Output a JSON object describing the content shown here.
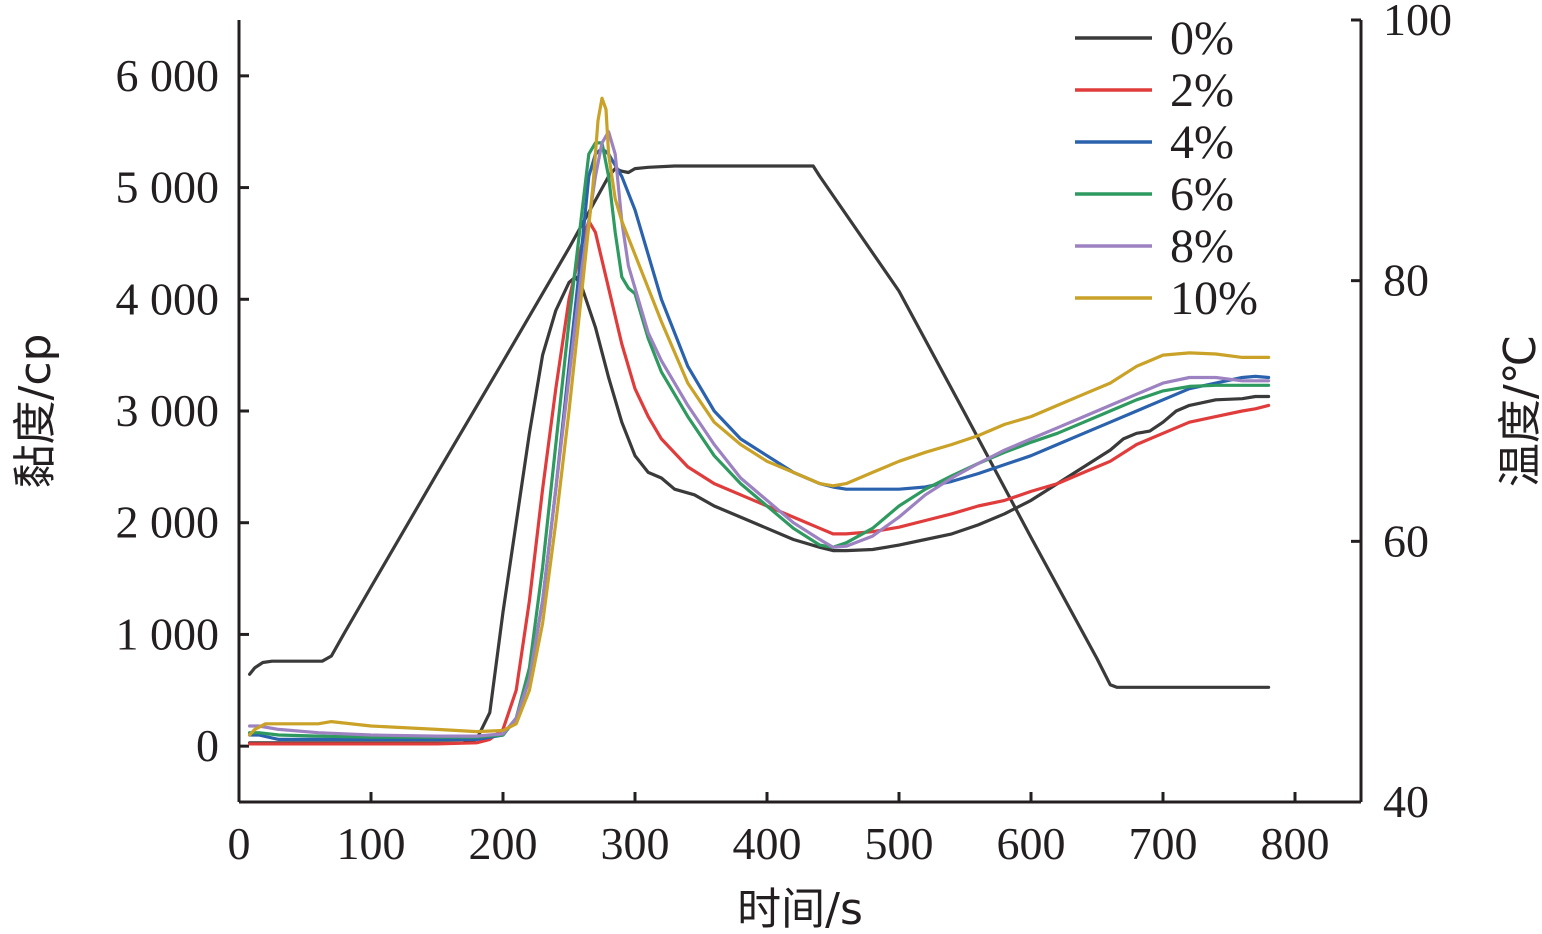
{
  "chart_data": {
    "type": "line",
    "xlabel": "时间/s",
    "ylabel": "黏度/cp",
    "y2label": "温度/℃",
    "xlim": [
      0,
      850
    ],
    "ylim": [
      -500,
      6500
    ],
    "y2lim": [
      40,
      100
    ],
    "x_ticks": [
      0,
      100,
      200,
      300,
      400,
      500,
      600,
      700,
      800
    ],
    "x_tick_labels": [
      "0",
      "100",
      "200",
      "300",
      "400",
      "500",
      "600",
      "700",
      "800"
    ],
    "y_ticks": [
      0,
      1000,
      2000,
      3000,
      4000,
      5000,
      6000
    ],
    "y_tick_labels": [
      "0",
      "1 000",
      "2 000",
      "3 000",
      "4 000",
      "5 000",
      "6 000"
    ],
    "y2_ticks": [
      40,
      60,
      80,
      100
    ],
    "y2_tick_labels": [
      "40",
      "60",
      "80",
      "100"
    ],
    "legend_position": "top-right",
    "grid": false,
    "series": [
      {
        "name": "0%",
        "color": "#3a3a3a",
        "x": [
          8,
          12,
          18,
          25,
          35,
          50,
          63,
          70,
          80,
          100,
          150,
          200,
          250,
          280,
          285,
          290,
          295,
          300,
          310,
          330,
          350,
          400,
          430,
          435,
          440,
          500,
          550,
          600,
          650,
          660,
          665,
          680,
          700,
          750,
          780
        ],
        "y": [
          49.8,
          50.3,
          50.7,
          50.8,
          50.8,
          50.8,
          50.8,
          51.2,
          53.0,
          56.5,
          65.2,
          73.8,
          82.5,
          88.0,
          88.6,
          88.4,
          88.3,
          88.6,
          88.7,
          88.8,
          88.8,
          88.8,
          88.8,
          88.8,
          88.0,
          79.2,
          69.8,
          60.3,
          51.0,
          49.0,
          48.8,
          48.8,
          48.8,
          48.8,
          48.8
        ],
        "axis": "right"
      },
      {
        "name": "0%",
        "color": "#3a3a3a",
        "x": [
          8,
          15,
          30,
          60,
          100,
          150,
          170,
          180,
          190,
          200,
          210,
          220,
          230,
          240,
          250,
          255,
          260,
          270,
          280,
          290,
          300,
          310,
          320,
          330,
          345,
          360,
          380,
          400,
          420,
          440,
          450,
          460,
          480,
          500,
          520,
          540,
          560,
          580,
          600,
          620,
          640,
          660,
          670,
          680,
          690,
          700,
          710,
          720,
          740,
          760,
          770,
          780
        ],
        "y": [
          30,
          30,
          30,
          30,
          30,
          30,
          30,
          60,
          300,
          1200,
          2000,
          2800,
          3500,
          3900,
          4150,
          4200,
          4100,
          3750,
          3300,
          2900,
          2600,
          2450,
          2400,
          2300,
          2250,
          2150,
          2050,
          1950,
          1850,
          1780,
          1750,
          1750,
          1760,
          1800,
          1850,
          1900,
          1980,
          2080,
          2200,
          2350,
          2500,
          2650,
          2750,
          2800,
          2820,
          2900,
          3000,
          3050,
          3100,
          3110,
          3130,
          3130
        ],
        "axis": "left"
      },
      {
        "name": "2%",
        "color": "#e03c3c",
        "x": [
          8,
          15,
          30,
          60,
          100,
          150,
          180,
          190,
          200,
          210,
          220,
          230,
          240,
          250,
          260,
          265,
          270,
          275,
          280,
          290,
          300,
          310,
          320,
          340,
          360,
          380,
          400,
          420,
          440,
          450,
          460,
          480,
          500,
          520,
          540,
          560,
          580,
          600,
          620,
          640,
          660,
          680,
          700,
          720,
          740,
          760,
          770,
          780
        ],
        "y": [
          20,
          20,
          20,
          20,
          20,
          20,
          30,
          60,
          150,
          500,
          1300,
          2300,
          3200,
          4000,
          4500,
          4700,
          4600,
          4350,
          4100,
          3600,
          3200,
          2950,
          2750,
          2500,
          2350,
          2250,
          2150,
          2050,
          1950,
          1900,
          1900,
          1920,
          1960,
          2020,
          2080,
          2150,
          2200,
          2280,
          2350,
          2450,
          2550,
          2700,
          2800,
          2900,
          2950,
          3000,
          3020,
          3050
        ],
        "axis": "left"
      },
      {
        "name": "4%",
        "color": "#2b62ad",
        "x": [
          8,
          15,
          30,
          60,
          100,
          150,
          180,
          200,
          210,
          220,
          230,
          240,
          250,
          260,
          265,
          270,
          275,
          280,
          290,
          300,
          310,
          320,
          340,
          360,
          380,
          400,
          420,
          440,
          450,
          460,
          480,
          500,
          520,
          540,
          560,
          580,
          600,
          620,
          640,
          660,
          680,
          700,
          720,
          740,
          760,
          770,
          780
        ],
        "y": [
          100,
          100,
          60,
          60,
          60,
          60,
          60,
          100,
          250,
          600,
          1300,
          2300,
          3400,
          4500,
          5100,
          5300,
          5350,
          5300,
          5100,
          4800,
          4400,
          4000,
          3400,
          3000,
          2750,
          2600,
          2450,
          2350,
          2320,
          2300,
          2300,
          2300,
          2320,
          2370,
          2440,
          2520,
          2600,
          2700,
          2800,
          2900,
          3000,
          3100,
          3200,
          3250,
          3300,
          3310,
          3300
        ],
        "axis": "left"
      },
      {
        "name": "6%",
        "color": "#2f9a60",
        "x": [
          8,
          15,
          30,
          60,
          100,
          150,
          180,
          200,
          210,
          220,
          230,
          240,
          250,
          260,
          265,
          270,
          275,
          280,
          285,
          290,
          295,
          300,
          310,
          320,
          340,
          360,
          380,
          400,
          420,
          440,
          450,
          460,
          480,
          500,
          520,
          540,
          560,
          580,
          600,
          620,
          640,
          660,
          680,
          700,
          720,
          740,
          760,
          780
        ],
        "y": [
          120,
          120,
          100,
          90,
          80,
          80,
          80,
          100,
          250,
          700,
          1600,
          2700,
          3800,
          4800,
          5300,
          5400,
          5400,
          5100,
          4600,
          4200,
          4100,
          4050,
          3650,
          3350,
          2950,
          2600,
          2350,
          2150,
          1950,
          1800,
          1780,
          1820,
          1950,
          2150,
          2300,
          2420,
          2530,
          2630,
          2720,
          2800,
          2900,
          3000,
          3100,
          3180,
          3220,
          3230,
          3230,
          3230
        ],
        "axis": "left"
      },
      {
        "name": "8%",
        "color": "#9d82c2",
        "x": [
          8,
          15,
          30,
          60,
          100,
          150,
          180,
          200,
          210,
          220,
          230,
          240,
          250,
          260,
          270,
          275,
          280,
          285,
          290,
          295,
          300,
          310,
          320,
          340,
          360,
          380,
          400,
          420,
          440,
          450,
          460,
          480,
          500,
          520,
          540,
          560,
          580,
          600,
          620,
          640,
          660,
          680,
          700,
          720,
          740,
          760,
          780
        ],
        "y": [
          180,
          180,
          150,
          120,
          100,
          90,
          90,
          110,
          250,
          600,
          1300,
          2300,
          3300,
          4300,
          5100,
          5400,
          5500,
          5300,
          4700,
          4300,
          4100,
          3700,
          3450,
          3050,
          2700,
          2400,
          2200,
          2000,
          1850,
          1780,
          1790,
          1880,
          2050,
          2250,
          2400,
          2530,
          2650,
          2750,
          2850,
          2950,
          3050,
          3150,
          3250,
          3300,
          3300,
          3270,
          3270
        ],
        "axis": "left"
      },
      {
        "name": "10%",
        "color": "#c9a227",
        "x": [
          8,
          12,
          20,
          40,
          60,
          70,
          100,
          150,
          180,
          200,
          210,
          220,
          230,
          240,
          250,
          260,
          268,
          272,
          275,
          278,
          280,
          285,
          290,
          300,
          320,
          340,
          360,
          380,
          400,
          420,
          440,
          450,
          460,
          480,
          500,
          520,
          540,
          560,
          580,
          600,
          620,
          640,
          660,
          680,
          700,
          720,
          740,
          760,
          780
        ],
        "y": [
          100,
          150,
          200,
          200,
          200,
          220,
          180,
          150,
          130,
          140,
          200,
          500,
          1100,
          2000,
          3000,
          4100,
          5000,
          5600,
          5800,
          5700,
          5300,
          4900,
          4700,
          4400,
          3800,
          3250,
          2900,
          2700,
          2550,
          2450,
          2350,
          2330,
          2350,
          2450,
          2550,
          2630,
          2700,
          2780,
          2880,
          2950,
          3050,
          3150,
          3250,
          3400,
          3500,
          3520,
          3510,
          3480,
          3480
        ],
        "axis": "left"
      }
    ]
  }
}
